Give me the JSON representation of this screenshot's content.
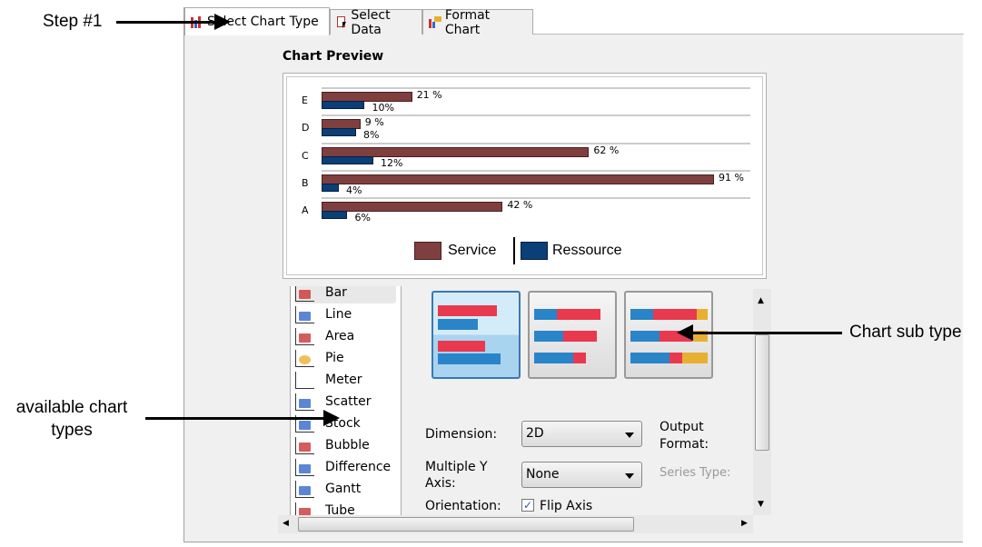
{
  "tabs": [
    {
      "label": "Select Chart Type",
      "icon": "bar-chart-icon",
      "active": true
    },
    {
      "label": "Select Data",
      "icon": "data-cursor-icon"
    },
    {
      "label": "Format Chart",
      "icon": "format-chart-icon"
    }
  ],
  "preview": {
    "title": "Chart Preview"
  },
  "chart_data": {
    "type": "bar",
    "orientation": "horizontal",
    "categories": [
      "E",
      "D",
      "C",
      "B",
      "A"
    ],
    "series": [
      {
        "name": "Service",
        "values": [
          21,
          9,
          62,
          91,
          42
        ],
        "labels": [
          "21 %",
          "9 %",
          "62 %",
          "91 %",
          "42 %"
        ],
        "color": "#7f3f3f"
      },
      {
        "name": "Ressource",
        "values": [
          10,
          8,
          12,
          4,
          6
        ],
        "labels": [
          "10%",
          "8%",
          "12%",
          "4%",
          "6%"
        ],
        "color": "#0a3f78"
      }
    ],
    "legend": "bottom",
    "grid": true
  },
  "chart_types": [
    {
      "label": "Bar",
      "icon": "bar-chart-icon",
      "selected": true
    },
    {
      "label": "Line",
      "icon": "line-chart-icon"
    },
    {
      "label": "Area",
      "icon": "area-chart-icon"
    },
    {
      "label": "Pie",
      "icon": "pie-chart-icon"
    },
    {
      "label": "Meter",
      "icon": "meter-icon"
    },
    {
      "label": "Scatter",
      "icon": "scatter-icon"
    },
    {
      "label": "Stock",
      "icon": "stock-icon"
    },
    {
      "label": "Bubble",
      "icon": "bubble-icon"
    },
    {
      "label": "Difference",
      "icon": "difference-icon"
    },
    {
      "label": "Gantt",
      "icon": "gantt-icon"
    },
    {
      "label": "Tube",
      "icon": "tube-icon"
    }
  ],
  "options": {
    "dimension_label": "Dimension:",
    "dimension_value": "2D",
    "multiple_y_label": "Multiple Y Axis:",
    "multiple_y_value": "None",
    "orientation_label": "Orientation:",
    "flip_axis_label": "Flip Axis",
    "flip_axis_checked": true,
    "output_format_label": "Output Format:",
    "series_type_label": "Series Type:"
  },
  "annotations": {
    "step": "Step #1",
    "chart_types": "available chart types",
    "sub_type": "Chart sub type"
  }
}
